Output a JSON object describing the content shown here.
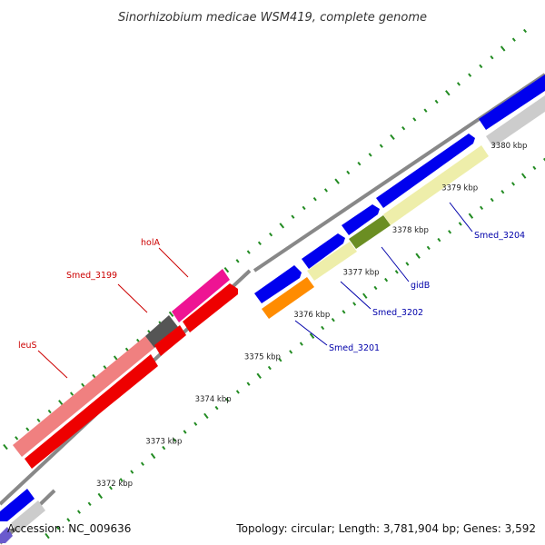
{
  "title": "Sinorhizobium medicae WSM419, complete genome",
  "footer": {
    "accession": "Accession: NC_009636",
    "topology": "Topology: circular; Length: 3,781,904 bp; Genes: 3,592"
  },
  "ticks": [
    {
      "label": "3372 kbp"
    },
    {
      "label": "3373 kbp"
    },
    {
      "label": "3374 kbp"
    },
    {
      "label": "3375 kbp"
    },
    {
      "label": "3376 kbp"
    },
    {
      "label": "3377 kbp"
    },
    {
      "label": "3378 kbp"
    },
    {
      "label": "3379 kbp"
    },
    {
      "label": "3380 kbp"
    }
  ],
  "labels": [
    {
      "text": "leuS",
      "color": "#cc0000"
    },
    {
      "text": "Smed_3199",
      "color": "#cc0000"
    },
    {
      "text": "holA",
      "color": "#cc0000"
    },
    {
      "text": "Smed_3201",
      "color": "#0000aa"
    },
    {
      "text": "Smed_3202",
      "color": "#0000aa"
    },
    {
      "text": "gidB",
      "color": "#0000aa"
    },
    {
      "text": "Smed_3204",
      "color": "#0000aa"
    }
  ],
  "colors": {
    "backbone": "#888888",
    "tick": "#228b22",
    "forward_blue": "#0000ee",
    "red": "#ee0000",
    "pink": "#f08080",
    "magenta": "#ee1493",
    "dark_gray": "#555555",
    "orange": "#ff8c00",
    "pale_yellow": "#eeeeaa",
    "olive": "#6b8e23",
    "light_gray": "#cccccc"
  }
}
